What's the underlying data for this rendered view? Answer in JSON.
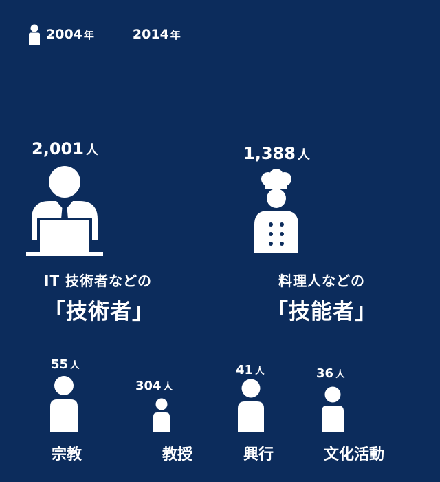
{
  "legend": {
    "year_2004": "2004",
    "year_2014": "2014",
    "year_suffix": "年"
  },
  "unit": "人",
  "groups": [
    {
      "count": "2,001",
      "label_line1": "IT 技術者などの",
      "label_line2": "「技術者」"
    },
    {
      "count": "1,388",
      "label_line1": "料理人などの",
      "label_line2": "「技能者」"
    }
  ],
  "small_groups": [
    {
      "count": "55",
      "label": "宗教"
    },
    {
      "count": "304",
      "label": "教授"
    },
    {
      "count": "41",
      "label": "興行"
    },
    {
      "count": "36",
      "label": "文化活動"
    }
  ],
  "colors": {
    "background": "#0c2c5c",
    "foreground": "#ffffff"
  }
}
